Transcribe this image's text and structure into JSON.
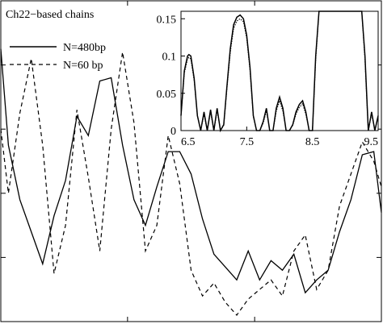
{
  "chart_data": [
    {
      "type": "line",
      "title": "",
      "xlabel": "",
      "ylabel": "",
      "annotation": "Ch22−based chains",
      "legend_position": "top-left",
      "legend": [
        "N=480bp",
        "N=60 bp"
      ],
      "xlim": [
        0,
        1
      ],
      "ylim": [
        0,
        1
      ],
      "x": [
        0.0,
        0.02,
        0.05,
        0.08,
        0.11,
        0.14,
        0.17,
        0.2,
        0.23,
        0.26,
        0.29,
        0.32,
        0.35,
        0.38,
        0.41,
        0.44,
        0.47,
        0.5,
        0.53,
        0.56,
        0.59,
        0.62,
        0.65,
        0.68,
        0.71,
        0.74,
        0.77,
        0.8,
        0.83,
        0.86,
        0.89,
        0.92,
        0.95,
        0.98,
        1.0
      ],
      "series": [
        {
          "name": "N=480bp",
          "style": "solid",
          "values": [
            0.85,
            0.55,
            0.38,
            0.28,
            0.18,
            0.33,
            0.44,
            0.64,
            0.58,
            0.75,
            0.76,
            0.55,
            0.38,
            0.3,
            0.42,
            0.53,
            0.53,
            0.46,
            0.32,
            0.21,
            0.17,
            0.13,
            0.22,
            0.13,
            0.19,
            0.16,
            0.21,
            0.09,
            0.13,
            0.16,
            0.28,
            0.38,
            0.52,
            0.53,
            0.34
          ]
        },
        {
          "name": "N=60 bp",
          "style": "dashed",
          "values": [
            0.6,
            0.4,
            0.65,
            0.82,
            0.55,
            0.15,
            0.3,
            0.66,
            0.45,
            0.22,
            0.6,
            0.84,
            0.62,
            0.22,
            0.3,
            0.58,
            0.43,
            0.16,
            0.08,
            0.12,
            0.06,
            0.02,
            0.07,
            0.1,
            0.13,
            0.08,
            0.22,
            0.27,
            0.1,
            0.16,
            0.36,
            0.46,
            0.56,
            0.5,
            0.42
          ]
        }
      ]
    },
    {
      "type": "line",
      "title": "",
      "xlabel": "",
      "ylabel": "",
      "xlim": [
        6.5,
        9.5
      ],
      "ylim": [
        0,
        0.16
      ],
      "xticks": [
        "6.5",
        "7.5",
        "8.5",
        "9.5"
      ],
      "yticks": [
        "0",
        "0.05",
        "0.1",
        "0.15"
      ],
      "x": [
        6.5,
        6.55,
        6.6,
        6.62,
        6.65,
        6.7,
        6.75,
        6.8,
        6.85,
        6.9,
        6.95,
        7.0,
        7.05,
        7.1,
        7.15,
        7.2,
        7.25,
        7.3,
        7.35,
        7.4,
        7.45,
        7.5,
        7.55,
        7.6,
        7.65,
        7.7,
        7.75,
        7.8,
        7.85,
        7.9,
        7.95,
        8.0,
        8.05,
        8.1,
        8.15,
        8.2,
        8.25,
        8.3,
        8.35,
        8.4,
        8.45,
        8.5,
        8.55,
        8.6,
        8.7,
        8.8,
        8.9,
        9.0,
        9.1,
        9.2,
        9.25,
        9.3,
        9.35,
        9.4,
        9.45,
        9.5
      ],
      "series": [
        {
          "style": "solid",
          "values": [
            0.02,
            0.08,
            0.1,
            0.102,
            0.1,
            0.07,
            0.02,
            0.0,
            0.025,
            0.0,
            0.028,
            0.0,
            0.03,
            0.0,
            0.008,
            0.06,
            0.11,
            0.142,
            0.152,
            0.155,
            0.15,
            0.128,
            0.085,
            0.02,
            0.0,
            0.0,
            0.012,
            0.03,
            0.0,
            0.0,
            0.03,
            0.045,
            0.03,
            0.0,
            0.0,
            0.008,
            0.025,
            0.035,
            0.04,
            0.025,
            0.0,
            0.0,
            0.1,
            0.16,
            0.16,
            0.16,
            0.16,
            0.16,
            0.16,
            0.16,
            0.16,
            0.1,
            0.0,
            0.025,
            0.0,
            0.02
          ]
        },
        {
          "style": "dotted",
          "values": [
            0.02,
            0.077,
            0.096,
            0.098,
            0.096,
            0.067,
            0.02,
            0.0,
            0.022,
            0.0,
            0.025,
            0.0,
            0.027,
            0.0,
            0.007,
            0.057,
            0.105,
            0.137,
            0.147,
            0.15,
            0.146,
            0.124,
            0.081,
            0.019,
            0.0,
            0.0,
            0.01,
            0.026,
            0.0,
            0.0,
            0.026,
            0.04,
            0.026,
            0.0,
            0.0,
            0.007,
            0.022,
            0.031,
            0.036,
            0.022,
            0.0,
            0.0,
            0.095,
            0.16,
            0.16,
            0.16,
            0.16,
            0.16,
            0.16,
            0.16,
            0.16,
            0.095,
            0.0,
            0.022,
            0.0,
            0.018
          ]
        }
      ]
    }
  ]
}
